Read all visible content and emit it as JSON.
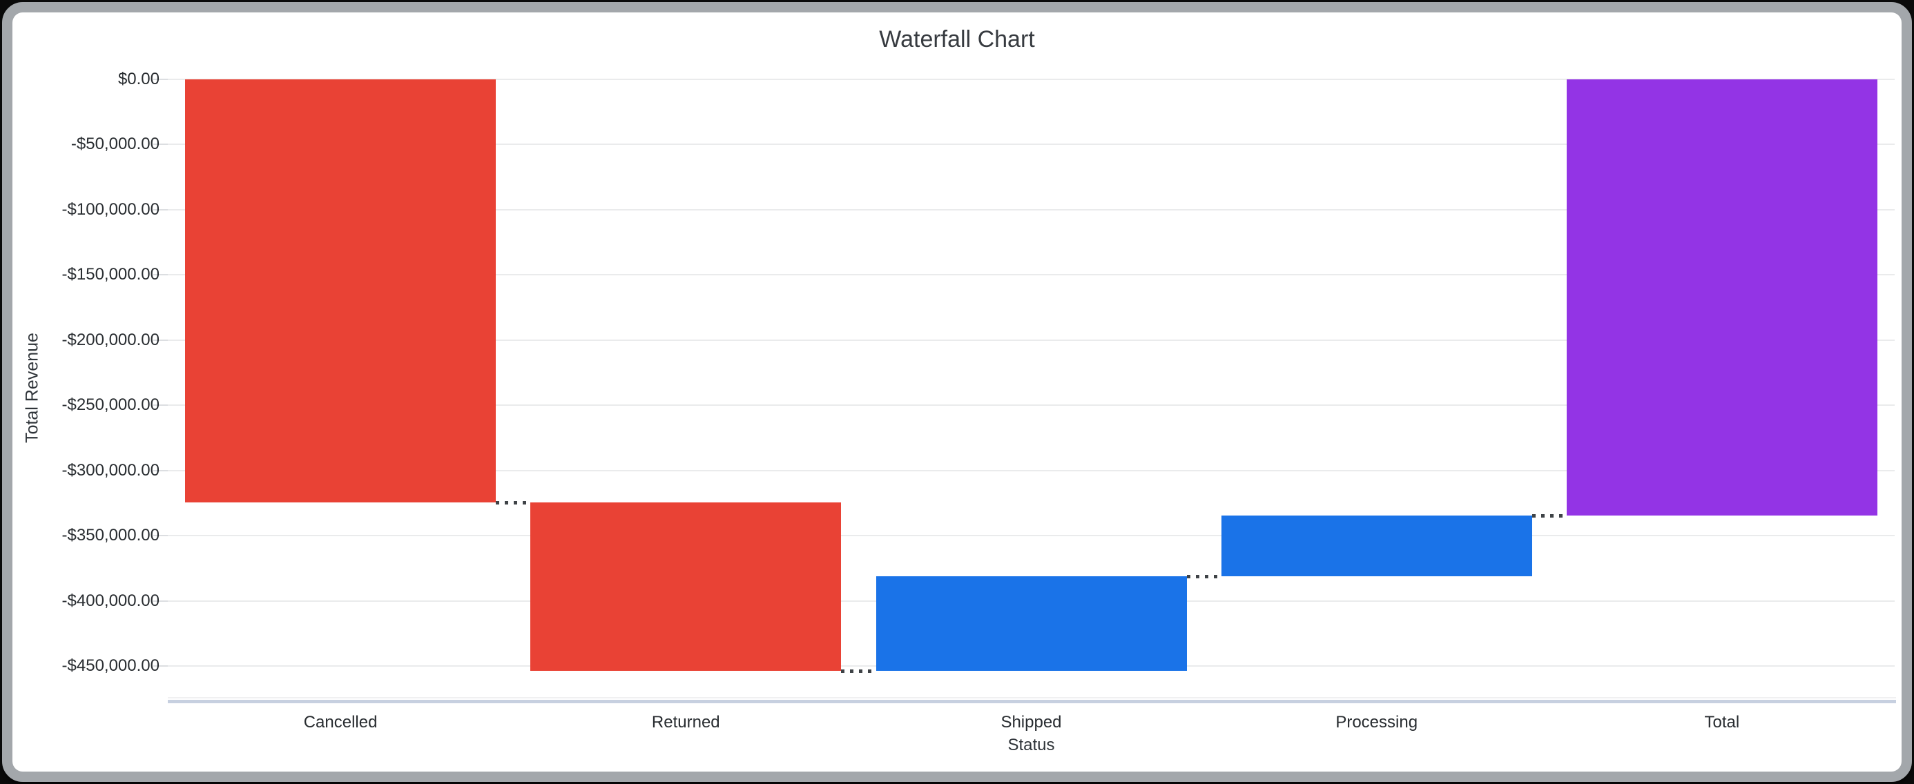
{
  "frame": {
    "background": "#ffffff",
    "border_color": "#a3a7ab",
    "outside_color": "#0a0a0a"
  },
  "chart_data": {
    "type": "bar",
    "subtype": "waterfall",
    "title": "Waterfall Chart",
    "xlabel": "Status",
    "ylabel": "Total Revenue",
    "legend": "none",
    "grid": true,
    "ylim": [
      -476000,
      0
    ],
    "categories": [
      "Cancelled",
      "Returned",
      "Shipped",
      "Processing",
      "Total"
    ],
    "steps": [
      {
        "label": "Cancelled",
        "kind": "decrease",
        "delta": -324500,
        "running_total": -324500
      },
      {
        "label": "Returned",
        "kind": "decrease",
        "delta": -129200,
        "running_total": -453700
      },
      {
        "label": "Shipped",
        "kind": "increase",
        "delta": 72500,
        "running_total": -381200
      },
      {
        "label": "Processing",
        "kind": "increase",
        "delta": 46600,
        "running_total": -334600
      },
      {
        "label": "Total",
        "kind": "total",
        "value": -334600,
        "running_total": -334600
      }
    ],
    "y_ticks": [
      {
        "value": 0,
        "label": "$0.00"
      },
      {
        "value": -50000,
        "label": "-$50,000.00"
      },
      {
        "value": -100000,
        "label": "-$100,000.00"
      },
      {
        "value": -150000,
        "label": "-$150,000.00"
      },
      {
        "value": -200000,
        "label": "-$200,000.00"
      },
      {
        "value": -250000,
        "label": "-$250,000.00"
      },
      {
        "value": -300000,
        "label": "-$300,000.00"
      },
      {
        "value": -350000,
        "label": "-$350,000.00"
      },
      {
        "value": -400000,
        "label": "-$400,000.00"
      },
      {
        "value": -450000,
        "label": "-$450,000.00"
      }
    ],
    "colors": {
      "decrease": "#E94235",
      "increase": "#1A73E8",
      "total": "#9334E5",
      "connector": "#3f4347",
      "gridline": "#eaebec",
      "axis_line": "#c7d0e0"
    }
  }
}
